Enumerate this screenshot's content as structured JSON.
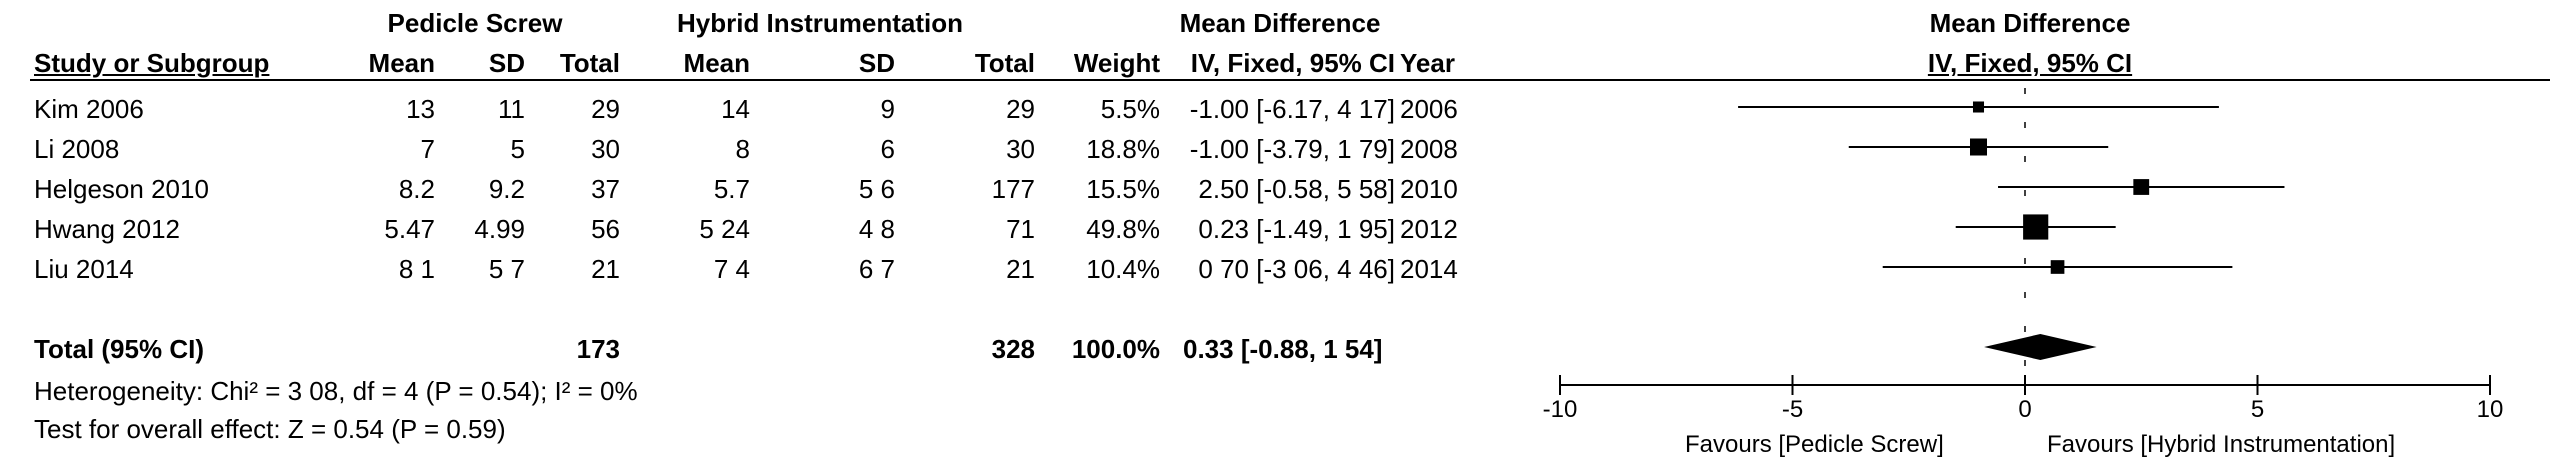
{
  "group_headers": {
    "exp": "Pedicle Screw",
    "ctl": "Hybrid Instrumentation",
    "md": "Mean Difference",
    "plot": "Mean Difference"
  },
  "columns": {
    "study": "Study or Subgroup",
    "mean1": "Mean",
    "sd1": "SD",
    "total1": "Total",
    "mean2": "Mean",
    "sd2": "SD",
    "total2": "Total",
    "weight": "Weight",
    "ci": "IV, Fixed, 95% CI",
    "year": "Year",
    "plot_ci": "IV, Fixed, 95% CI"
  },
  "studies": [
    {
      "name": "Kim 2006",
      "mean1": "13",
      "sd1": "11",
      "total1": "29",
      "mean2": "14",
      "sd2": "9",
      "total2": "29",
      "weight": "5.5%",
      "ci": "-1.00 [-6.17, 4 17]",
      "year": "2006"
    },
    {
      "name": "Li 2008",
      "mean1": "7",
      "sd1": "5",
      "total1": "30",
      "mean2": "8",
      "sd2": "6",
      "total2": "30",
      "weight": "18.8%",
      "ci": "-1.00 [-3.79, 1 79]",
      "year": "2008"
    },
    {
      "name": "Helgeson 2010",
      "mean1": "8.2",
      "sd1": "9.2",
      "total1": "37",
      "mean2": "5.7",
      "sd2": "5 6",
      "total2": "177",
      "weight": "15.5%",
      "ci": "2.50 [-0.58, 5 58]",
      "year": "2010"
    },
    {
      "name": "Hwang 2012",
      "mean1": "5.47",
      "sd1": "4.99",
      "total1": "56",
      "mean2": "5 24",
      "sd2": "4 8",
      "total2": "71",
      "weight": "49.8%",
      "ci": "0.23 [-1.49, 1 95]",
      "year": "2012"
    },
    {
      "name": "Liu 2014",
      "mean1": "8 1",
      "sd1": "5 7",
      "total1": "21",
      "mean2": "7 4",
      "sd2": "6 7",
      "total2": "21",
      "weight": "10.4%",
      "ci": "0 70 [-3 06, 4 46]",
      "year": "2014"
    }
  ],
  "total": {
    "label": "Total (95% CI)",
    "total1": "173",
    "total2": "328",
    "weight": "100.0%",
    "ci": "0.33 [-0.88, 1 54]"
  },
  "heterogeneity": "Heterogeneity: Chi² = 3 08, df = 4 (P = 0.54); I² = 0%",
  "overall_effect": "Test for overall effect: Z = 0.54 (P = 0.59)",
  "favours_left": "Favours [Pedicle Screw]",
  "favours_right": "Favours [Hybrid Instrumentation]",
  "colors": {
    "ink": "#000000",
    "marker": "#000000"
  },
  "chart_data": {
    "type": "forest",
    "axis_ticks": [
      -10,
      -5,
      0,
      5,
      10
    ],
    "xlim": [
      -10,
      10
    ],
    "reference_line": 0,
    "studies": [
      {
        "name": "Kim 2006",
        "md": -1.0,
        "lo": -6.17,
        "hi": 4.17,
        "weight": 5.5
      },
      {
        "name": "Li 2008",
        "md": -1.0,
        "lo": -3.79,
        "hi": 1.79,
        "weight": 18.8
      },
      {
        "name": "Helgeson 2010",
        "md": 2.5,
        "lo": -0.58,
        "hi": 5.58,
        "weight": 15.5
      },
      {
        "name": "Hwang 2012",
        "md": 0.23,
        "lo": -1.49,
        "hi": 1.95,
        "weight": 49.8
      },
      {
        "name": "Liu 2014",
        "md": 0.7,
        "lo": -3.06,
        "hi": 4.46,
        "weight": 10.4
      }
    ],
    "pooled": {
      "md": 0.33,
      "lo": -0.88,
      "hi": 1.54
    }
  }
}
